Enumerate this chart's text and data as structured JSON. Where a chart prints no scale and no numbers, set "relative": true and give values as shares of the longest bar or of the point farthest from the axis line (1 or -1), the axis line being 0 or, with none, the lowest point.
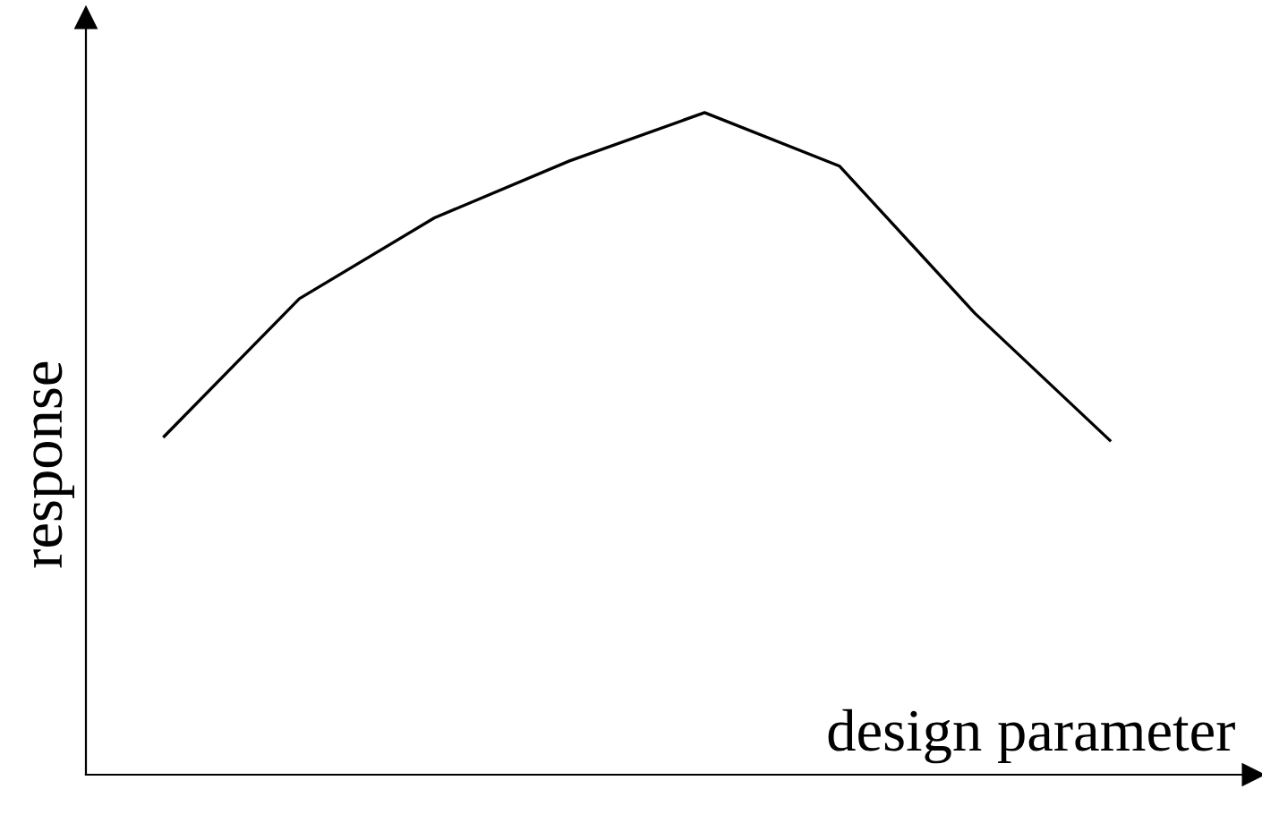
{
  "chart_data": {
    "type": "line",
    "relative": true,
    "xlabel": "design parameter",
    "ylabel": "response",
    "categories": [
      null,
      null,
      null,
      null,
      null,
      null,
      null,
      null
    ],
    "series": [
      {
        "color": "#000000",
        "values": [
          0.511,
          0.719,
          0.841,
          0.927,
          1,
          0.919,
          0.697,
          0.505
        ]
      }
    ],
    "marker": "none",
    "line_style": "solid",
    "legend": false
  }
}
